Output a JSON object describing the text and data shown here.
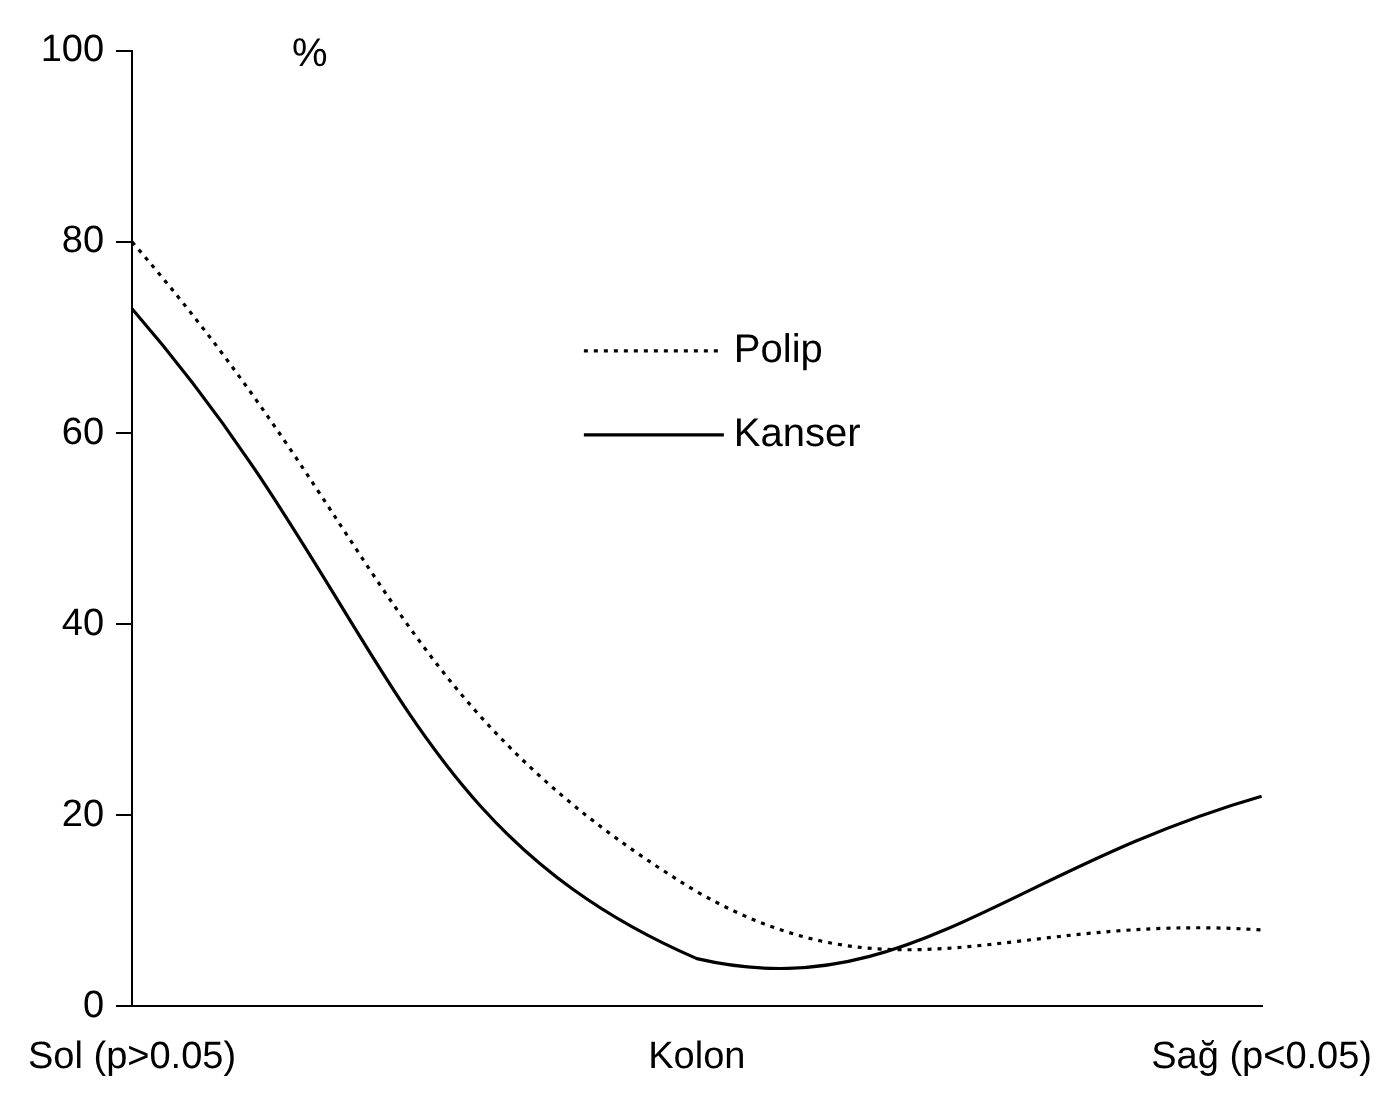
{
  "chart_data": {
    "type": "line",
    "ylabel": "%",
    "categories": [
      "Sol (p>0.05)",
      "Kolon",
      "Sağ (p<0.05)"
    ],
    "series": [
      {
        "name": "Polip",
        "color": "#000000",
        "values": [
          80,
          12,
          8
        ],
        "line_style": "dotted"
      },
      {
        "name": "Kanser",
        "color": "#000000",
        "values": [
          73,
          5,
          22
        ],
        "line_style": "solid"
      }
    ],
    "ylim": [
      0,
      100
    ],
    "yticks": [
      0,
      20,
      40,
      60,
      80,
      100
    ],
    "grid": false,
    "legend": "top",
    "marker": "none"
  }
}
